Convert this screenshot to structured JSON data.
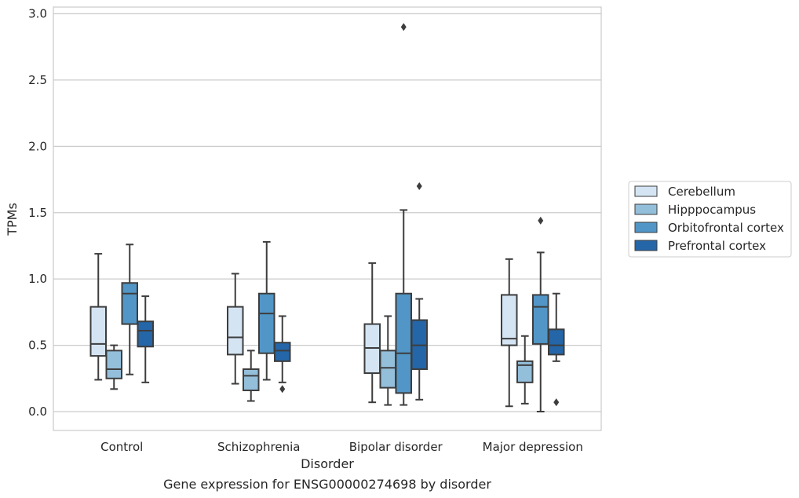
{
  "chart_data": {
    "type": "box",
    "title": "",
    "caption": "Gene expression for ENSG00000274698 by disorder",
    "xlabel": "Disorder",
    "ylabel": "TPMs",
    "ylim": [
      -0.14,
      3.05
    ],
    "yticks": [
      0.0,
      0.5,
      1.0,
      1.5,
      2.0,
      2.5,
      3.0
    ],
    "ytick_labels": [
      "0.0",
      "0.5",
      "1.0",
      "1.5",
      "2.0",
      "2.5",
      "3.0"
    ],
    "grid": "horizontal",
    "legend_position": "right",
    "categories": [
      "Control",
      "Schizophrenia",
      "Bipolar disorder",
      "Major depression"
    ],
    "series": [
      {
        "name": "Cerebellum",
        "color": "#d4e4f3",
        "boxes": [
          {
            "whislo": 0.24,
            "q1": 0.42,
            "med": 0.51,
            "q3": 0.79,
            "whishi": 1.19,
            "fliers": []
          },
          {
            "whislo": 0.21,
            "q1": 0.43,
            "med": 0.56,
            "q3": 0.79,
            "whishi": 1.04,
            "fliers": []
          },
          {
            "whislo": 0.07,
            "q1": 0.29,
            "med": 0.48,
            "q3": 0.66,
            "whishi": 1.12,
            "fliers": []
          },
          {
            "whislo": 0.04,
            "q1": 0.5,
            "med": 0.55,
            "q3": 0.88,
            "whishi": 1.15,
            "fliers": []
          }
        ]
      },
      {
        "name": "Hipppocampus",
        "color": "#94bfdb",
        "boxes": [
          {
            "whislo": 0.17,
            "q1": 0.25,
            "med": 0.32,
            "q3": 0.46,
            "whishi": 0.5,
            "fliers": []
          },
          {
            "whislo": 0.08,
            "q1": 0.16,
            "med": 0.27,
            "q3": 0.32,
            "whishi": 0.46,
            "fliers": []
          },
          {
            "whislo": 0.05,
            "q1": 0.18,
            "med": 0.33,
            "q3": 0.46,
            "whishi": 0.72,
            "fliers": []
          },
          {
            "whislo": 0.06,
            "q1": 0.22,
            "med": 0.35,
            "q3": 0.38,
            "whishi": 0.57,
            "fliers": []
          }
        ]
      },
      {
        "name": "Orbitofrontal cortex",
        "color": "#5196c6",
        "boxes": [
          {
            "whislo": 0.28,
            "q1": 0.66,
            "med": 0.89,
            "q3": 0.97,
            "whishi": 1.26,
            "fliers": []
          },
          {
            "whislo": 0.24,
            "q1": 0.44,
            "med": 0.74,
            "q3": 0.89,
            "whishi": 1.28,
            "fliers": []
          },
          {
            "whislo": 0.05,
            "q1": 0.14,
            "med": 0.44,
            "q3": 0.89,
            "whishi": 1.52,
            "fliers": [
              2.9
            ]
          },
          {
            "whislo": 0.0,
            "q1": 0.51,
            "med": 0.79,
            "q3": 0.88,
            "whishi": 1.2,
            "fliers": [
              1.44
            ]
          }
        ]
      },
      {
        "name": "Prefrontal cortex",
        "color": "#2466a8",
        "boxes": [
          {
            "whislo": 0.22,
            "q1": 0.49,
            "med": 0.61,
            "q3": 0.68,
            "whishi": 0.87,
            "fliers": []
          },
          {
            "whislo": 0.22,
            "q1": 0.38,
            "med": 0.46,
            "q3": 0.52,
            "whishi": 0.72,
            "fliers": [
              0.17
            ]
          },
          {
            "whislo": 0.09,
            "q1": 0.32,
            "med": 0.5,
            "q3": 0.69,
            "whishi": 0.85,
            "fliers": [
              1.7
            ]
          },
          {
            "whislo": 0.38,
            "q1": 0.43,
            "med": 0.5,
            "q3": 0.62,
            "whishi": 0.89,
            "fliers": [
              0.07
            ]
          }
        ]
      }
    ]
  }
}
